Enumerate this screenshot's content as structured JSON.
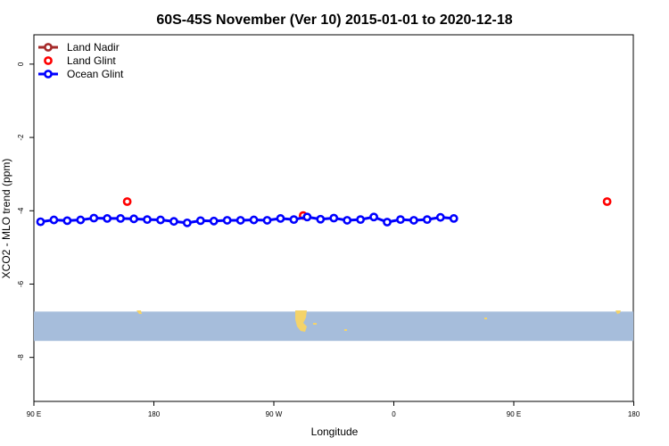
{
  "chart_data": {
    "type": "line",
    "title": "60S-45S November (Ver 10)   2015-01-01 to 2020-12-18",
    "xlabel": "Longitude",
    "ylabel": "XCO2 - MLO trend (ppm)",
    "xlim": [
      90,
      450
    ],
    "ylim": [
      -9.2,
      0.8
    ],
    "x_ticks": [
      {
        "value": 90,
        "label": "90 E"
      },
      {
        "value": 180,
        "label": "180"
      },
      {
        "value": 270,
        "label": "90 W"
      },
      {
        "value": 360,
        "label": "0"
      },
      {
        "value": 450,
        "label": "90 E"
      },
      {
        "value": 540,
        "label": "180"
      }
    ],
    "y_ticks": [
      {
        "value": 0,
        "label": "0"
      },
      {
        "value": -2,
        "label": "-2"
      },
      {
        "value": -4,
        "label": "-4"
      },
      {
        "value": -6,
        "label": "-6"
      },
      {
        "value": -8,
        "label": "-8"
      }
    ],
    "grid": false,
    "legend_position": "top-left",
    "map_band": {
      "ylim": [
        -7.55,
        -6.75
      ],
      "ocean_color": "#a6bddb",
      "land_color": "#f4d36a"
    },
    "series": [
      {
        "name": "Land Nadir",
        "color": "#a52a2a",
        "style": "line+markers",
        "points": []
      },
      {
        "name": "Land Glint",
        "color": "#ff0000",
        "style": "markers",
        "points": [
          [
            160,
            -3.75
          ],
          [
            292,
            -4.13
          ],
          [
            520,
            -3.75
          ]
        ]
      },
      {
        "name": "Ocean Glint",
        "color": "#0000ff",
        "style": "line+markers",
        "points": [
          [
            95,
            -4.3
          ],
          [
            105,
            -4.25
          ],
          [
            115,
            -4.27
          ],
          [
            125,
            -4.25
          ],
          [
            135,
            -4.2
          ],
          [
            145,
            -4.21
          ],
          [
            155,
            -4.21
          ],
          [
            165,
            -4.22
          ],
          [
            175,
            -4.24
          ],
          [
            185,
            -4.25
          ],
          [
            195,
            -4.29
          ],
          [
            205,
            -4.33
          ],
          [
            215,
            -4.27
          ],
          [
            225,
            -4.28
          ],
          [
            235,
            -4.26
          ],
          [
            245,
            -4.26
          ],
          [
            255,
            -4.25
          ],
          [
            265,
            -4.26
          ],
          [
            275,
            -4.21
          ],
          [
            285,
            -4.24
          ],
          [
            295,
            -4.17
          ],
          [
            305,
            -4.23
          ],
          [
            315,
            -4.2
          ],
          [
            325,
            -4.26
          ],
          [
            335,
            -4.24
          ],
          [
            345,
            -4.17
          ],
          [
            355,
            -4.31
          ],
          [
            365,
            -4.24
          ],
          [
            375,
            -4.26
          ],
          [
            385,
            -4.24
          ],
          [
            395,
            -4.18
          ],
          [
            405,
            -4.21
          ]
        ]
      }
    ]
  }
}
